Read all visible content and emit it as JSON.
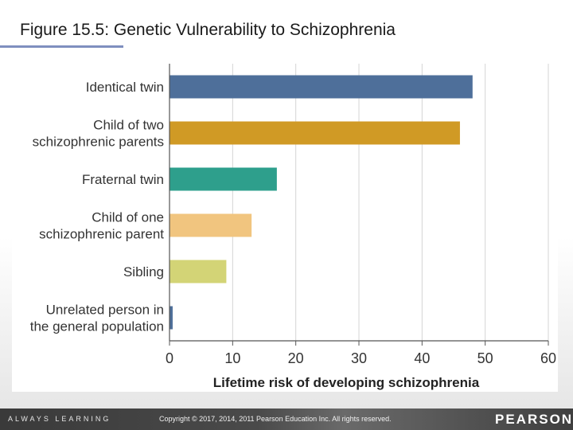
{
  "slide": {
    "title": "Figure 15.5: Genetic Vulnerability to Schizophrenia"
  },
  "footer": {
    "left": "ALWAYS LEARNING",
    "center": "Copyright © 2017, 2014, 2011 Pearson Education Inc. All rights reserved.",
    "right": "PEARSON"
  },
  "chart_data": {
    "type": "bar",
    "orientation": "horizontal",
    "categories": [
      "Identical twin",
      "Child of two schizophrenic parents",
      "Fraternal twin",
      "Child of one schizophrenic parent",
      "Sibling",
      "Unrelated person in the general population"
    ],
    "category_lines": [
      [
        "Identical twin"
      ],
      [
        "Child of two",
        "schizophrenic parents"
      ],
      [
        "Fraternal twin"
      ],
      [
        "Child of one",
        "schizophrenic parent"
      ],
      [
        "Sibling"
      ],
      [
        "Unrelated person in",
        "the general population"
      ]
    ],
    "values": [
      48,
      46,
      17,
      13,
      9,
      0.5
    ],
    "colors": [
      "#4e6f9a",
      "#d09a25",
      "#2e9f8c",
      "#f1c57f",
      "#d3d476",
      "#4e6f9a"
    ],
    "xlabel": "Lifetime risk of developing schizophrenia",
    "ylabel": "",
    "xlim": [
      0,
      60
    ],
    "xticks": [
      0,
      10,
      20,
      30,
      40,
      50,
      60
    ],
    "grid": true
  }
}
